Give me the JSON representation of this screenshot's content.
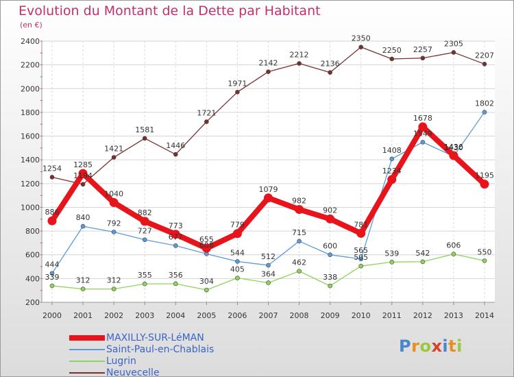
{
  "title": "Evolution du Montant de la Dette par Habitant",
  "unit": "(en €)",
  "logo_text": "Proxiti",
  "chart_data": {
    "type": "line",
    "x": [
      "2000",
      "2001",
      "2002",
      "2003",
      "2004",
      "2005",
      "2006",
      "2007",
      "2008",
      "2009",
      "2010",
      "2011",
      "2012",
      "2013",
      "2014"
    ],
    "ylim": [
      200,
      2400
    ],
    "yticks": [
      200,
      400,
      600,
      800,
      1000,
      1200,
      1400,
      1600,
      1800,
      2000,
      2200,
      2400
    ],
    "grid": true,
    "legend": "bottom-left",
    "series": [
      {
        "name": "MAXILLY-SUR-LéMAN",
        "color": "#e8141c",
        "values": [
          886,
          1285,
          1040,
          882,
          773,
          655,
          779,
          1079,
          982,
          902,
          781,
          1234,
          1678,
          1436,
          1195
        ]
      },
      {
        "name": "Saint-Paul-en-Chablais",
        "color": "#5a9bd8",
        "values": [
          444,
          840,
          792,
          727,
          677,
          608,
          544,
          512,
          715,
          600,
          565,
          1408,
          1549,
          1430,
          1802
        ]
      },
      {
        "name": "Lugrin",
        "color": "#8fd45a",
        "values": [
          339,
          312,
          312,
          355,
          356,
          304,
          405,
          364,
          462,
          338,
          505,
          539,
          542,
          606,
          550
        ]
      },
      {
        "name": "Neuvecelle",
        "color": "#7a2e2e",
        "values": [
          1254,
          1194,
          1421,
          1581,
          1446,
          1721,
          1971,
          2142,
          2212,
          2136,
          2350,
          2250,
          2257,
          2305,
          2207
        ]
      }
    ]
  }
}
